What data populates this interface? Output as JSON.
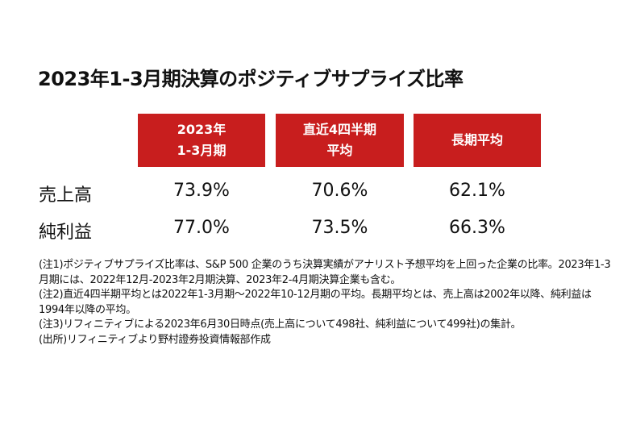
{
  "title": "2023年1-3月期決算のポジティブサプライズ比率",
  "table": {
    "headers": [
      [
        "2023年",
        "1-3月期"
      ],
      [
        "直近4四半期",
        "平均"
      ],
      [
        "長期平均"
      ]
    ],
    "rows": [
      {
        "label": "売上高",
        "values": [
          "73.9%",
          "70.6%",
          "62.1%"
        ]
      },
      {
        "label": "純利益",
        "values": [
          "77.0%",
          "73.5%",
          "66.3%"
        ]
      }
    ]
  },
  "notes": [
    "(注1)ポジティブサプライズ比率は、S&P 500 企業のうち決算実績がアナリスト予想平均を上回った企業の比率。2023年1-3月期には、2022年12月-2023年2月期決算、2023年2-4月期決算企業も含む。",
    "(注2)直近4四半期平均とは2022年1-3月期～2022年10-12月期の平均。長期平均とは、売上高は2002年以降、純利益は1994年以降の平均。",
    "(注3)リフィニティブによる2023年6月30日時点(売上高について498社、純利益について499社)の集計。",
    "(出所)リフィニティブより野村證券投資情報部作成"
  ],
  "colors": {
    "header_bg": "#c81e1e",
    "header_text": "#ffffff",
    "text": "#111111"
  }
}
